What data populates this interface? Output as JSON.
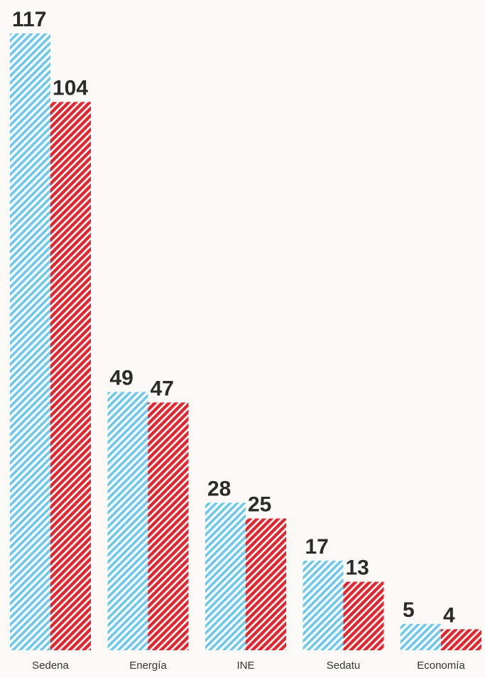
{
  "chart_data": {
    "type": "bar",
    "categories": [
      "Sedena",
      "Energía",
      "INE",
      "Sedatu",
      "Economía"
    ],
    "series": [
      {
        "values": [
          117,
          49,
          28,
          17,
          5
        ],
        "color": "#6cc8ea",
        "pattern": "diagonal-hatch"
      },
      {
        "values": [
          104,
          47,
          25,
          13,
          4
        ],
        "color": "#e0262f",
        "pattern": "diagonal-hatch"
      }
    ],
    "ylim": [
      0,
      117
    ],
    "grid": false,
    "legend": "none",
    "value_labels": true
  }
}
